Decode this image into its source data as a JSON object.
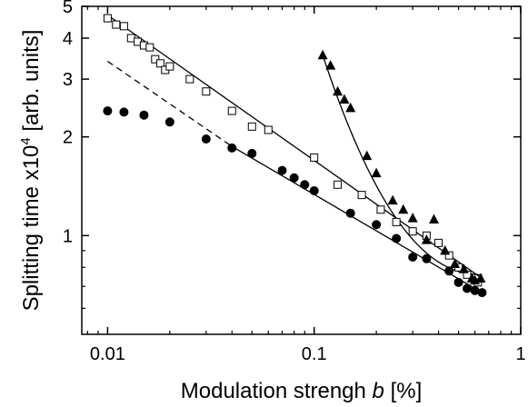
{
  "chart_data": {
    "type": "scatter",
    "xlabel": "Modulation strengh b [%]",
    "xlabel_prefix": "Modulation strengh ",
    "xlabel_var": "b",
    "xlabel_suffix": " [%]",
    "ylabel": "Splitting time x10^4 [arb. units]",
    "ylabel_prefix": "Splitting time x10",
    "ylabel_sup": "4",
    "ylabel_suffix": " [arb. units]",
    "x_scale": "log",
    "y_scale": "log",
    "xlim": [
      0.0075,
      1
    ],
    "ylim": [
      0.5,
      5
    ],
    "x_ticks": [
      0.01,
      0.1,
      1
    ],
    "x_tick_labels": [
      "0.01",
      "0.1",
      "1"
    ],
    "y_ticks": [
      1,
      2,
      3,
      4,
      5
    ],
    "y_tick_labels": [
      "1",
      "2",
      "3",
      "4",
      "5"
    ],
    "grid": false,
    "legend": "none",
    "series": [
      {
        "marker": "open-square",
        "x": [
          0.01,
          0.011,
          0.012,
          0.013,
          0.014,
          0.015,
          0.016,
          0.017,
          0.018,
          0.019,
          0.02,
          0.025,
          0.03,
          0.04,
          0.05,
          0.06,
          0.1,
          0.13,
          0.17,
          0.21,
          0.25,
          0.3,
          0.35,
          0.4,
          0.45,
          0.5,
          0.55,
          0.62
        ],
        "y": [
          4.6,
          4.4,
          4.35,
          4.0,
          3.9,
          3.8,
          3.75,
          3.45,
          3.35,
          3.2,
          3.28,
          3.0,
          2.75,
          2.4,
          2.15,
          2.1,
          1.73,
          1.43,
          1.33,
          1.2,
          1.1,
          1.03,
          1.0,
          0.95,
          0.87,
          0.8,
          0.76,
          0.72
        ]
      },
      {
        "marker": "filled-circle",
        "x": [
          0.01,
          0.012,
          0.015,
          0.02,
          0.03,
          0.04,
          0.05,
          0.07,
          0.08,
          0.09,
          0.1,
          0.15,
          0.2,
          0.25,
          0.3,
          0.35,
          0.45,
          0.5,
          0.55,
          0.6,
          0.65
        ],
        "y": [
          2.4,
          2.38,
          2.33,
          2.22,
          1.97,
          1.85,
          1.78,
          1.58,
          1.5,
          1.43,
          1.37,
          1.17,
          1.08,
          0.98,
          0.86,
          0.85,
          0.78,
          0.72,
          0.69,
          0.68,
          0.67
        ]
      },
      {
        "marker": "filled-triangle",
        "x": [
          0.11,
          0.12,
          0.13,
          0.14,
          0.15,
          0.18,
          0.2,
          0.24,
          0.27,
          0.3,
          0.35,
          0.38,
          0.43,
          0.48,
          0.53,
          0.58,
          0.6,
          0.64
        ],
        "y": [
          3.55,
          3.3,
          2.75,
          2.6,
          2.45,
          1.75,
          1.55,
          1.28,
          1.2,
          1.13,
          0.97,
          1.12,
          0.9,
          0.82,
          0.79,
          0.74,
          0.73,
          0.74
        ]
      }
    ],
    "fit_lines": [
      {
        "style": "solid",
        "x": [
          0.01,
          0.65
        ],
        "y": [
          4.7,
          0.74
        ]
      },
      {
        "style": "solid",
        "x": [
          0.04,
          0.65
        ],
        "y": [
          1.87,
          0.67
        ]
      },
      {
        "style": "dashed",
        "x": [
          0.01,
          0.04
        ],
        "y": [
          3.4,
          1.87
        ]
      },
      {
        "style": "solid",
        "curve": "power",
        "x": [
          0.11,
          0.65
        ],
        "y": [
          3.55,
          0.76
        ]
      }
    ]
  }
}
